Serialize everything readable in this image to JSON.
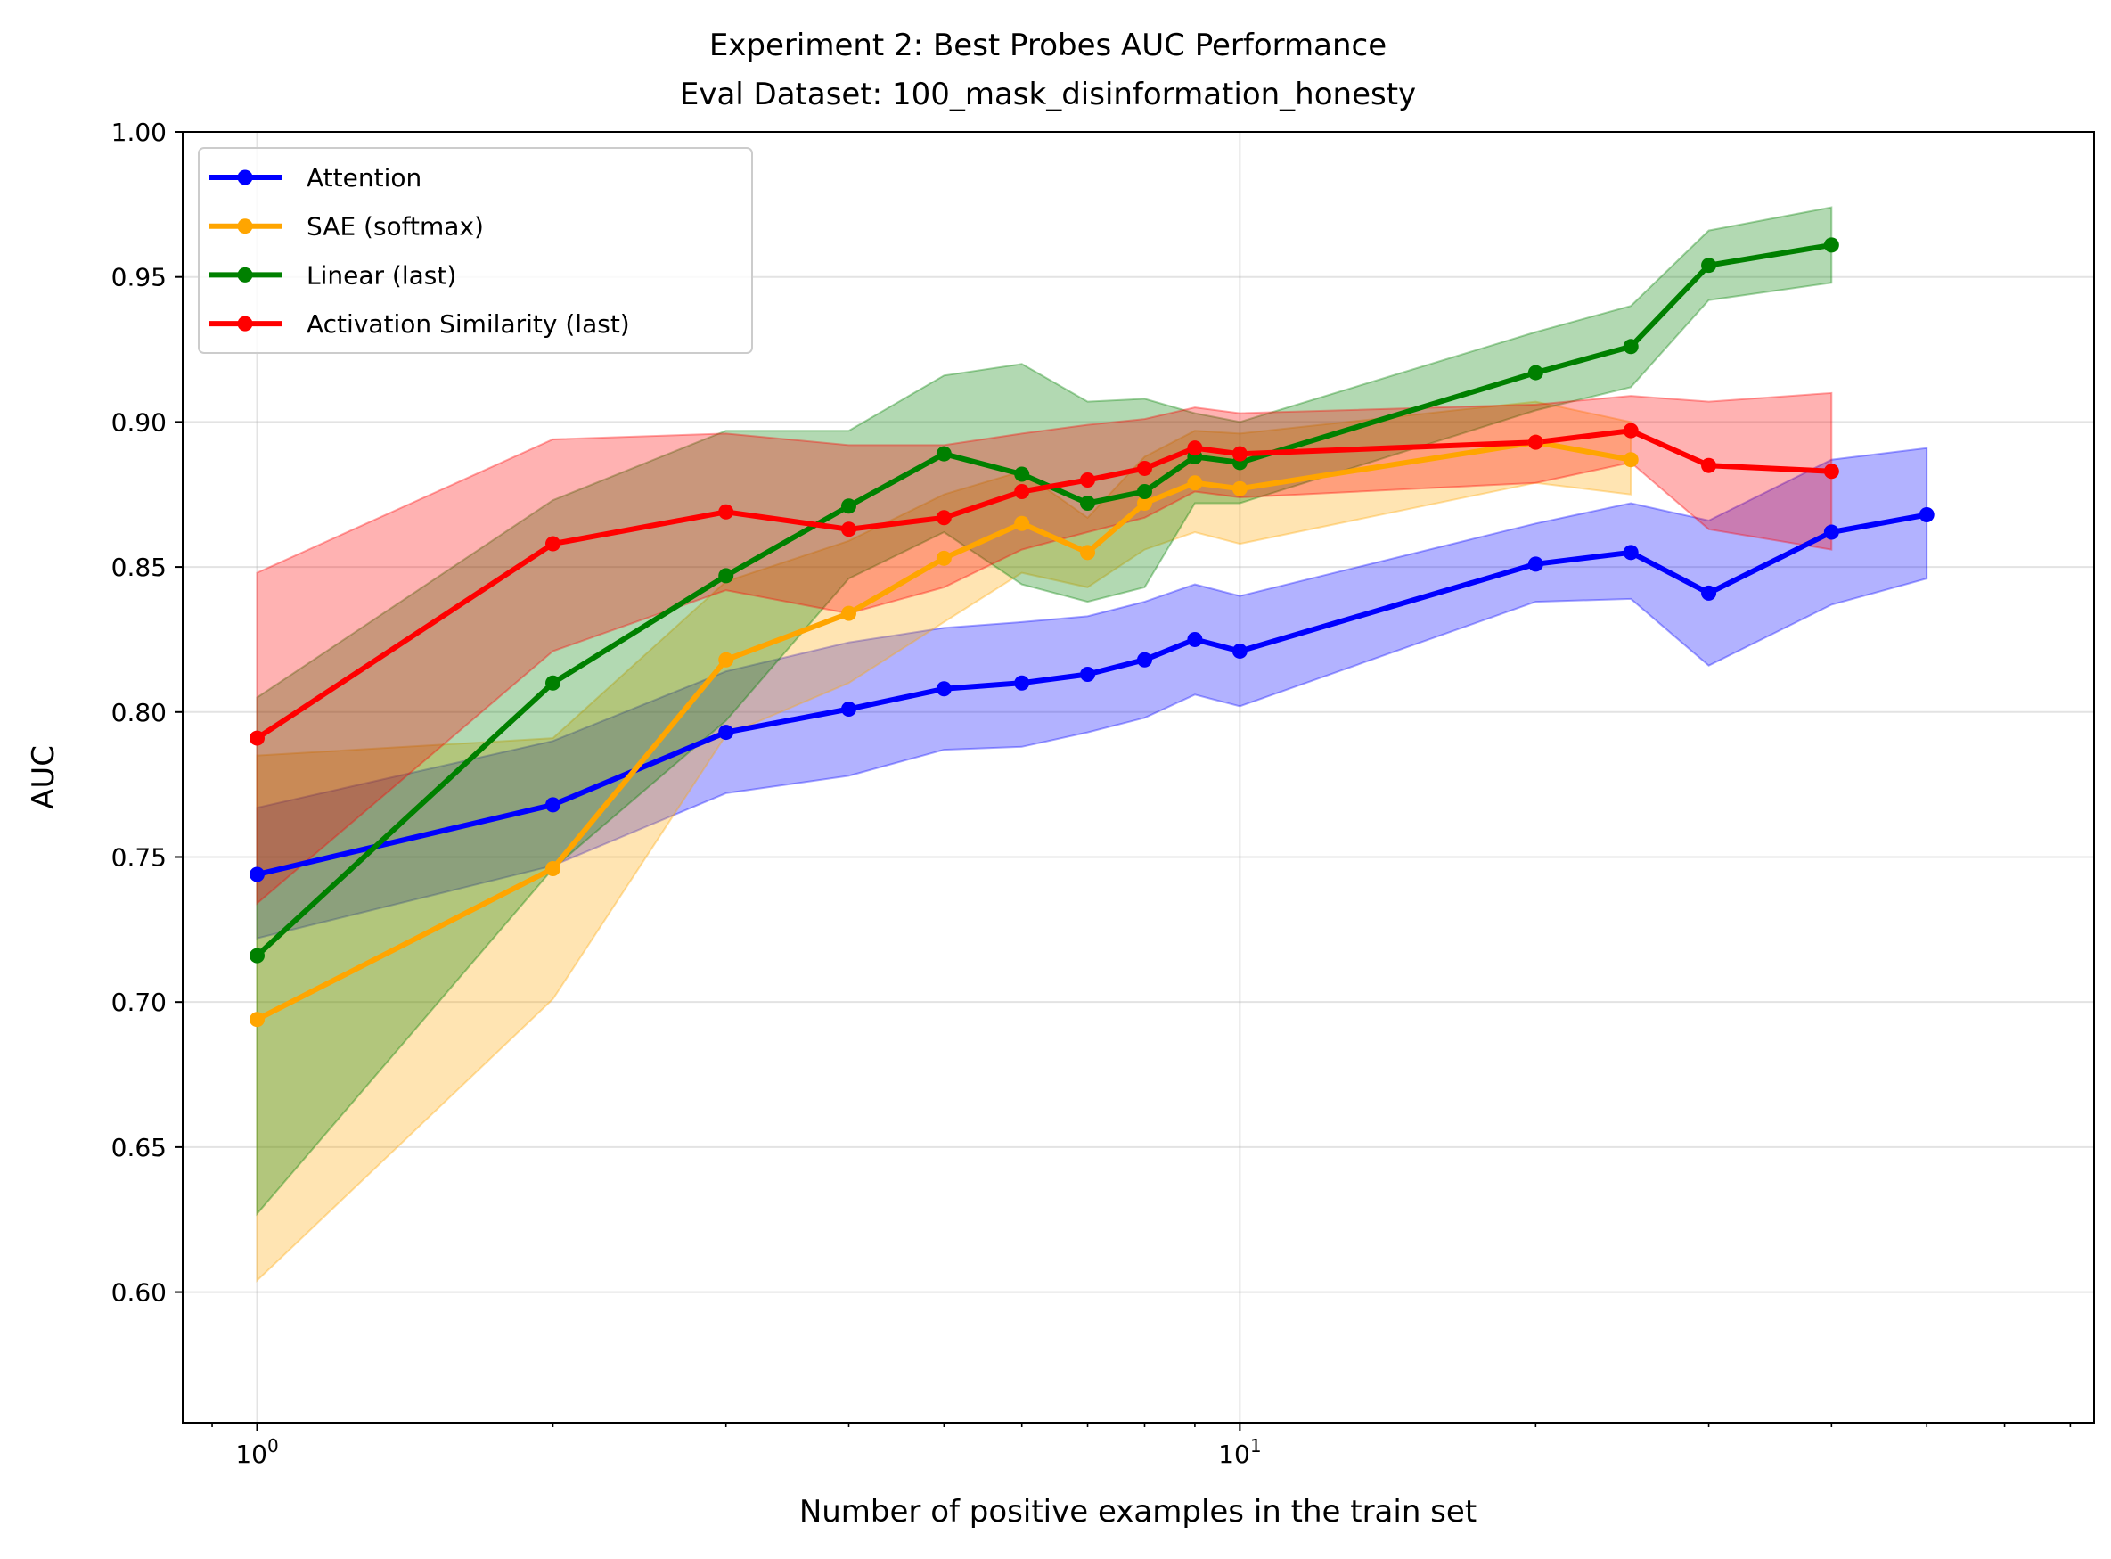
{
  "chart_data": {
    "type": "line",
    "title": "Experiment 2: Best Probes AUC Performance",
    "subtitle": "Eval Dataset: 100_mask_disinformation_honesty",
    "xlabel": "Number of positive examples in the train set",
    "ylabel": "AUC",
    "xscale": "log",
    "xlim": [
      0.84,
      74
    ],
    "ylim": [
      0.555,
      1.0
    ],
    "yticks": [
      0.6,
      0.65,
      0.7,
      0.75,
      0.8,
      0.85,
      0.9,
      0.95,
      1.0
    ],
    "ytick_labels": [
      "0.60",
      "0.65",
      "0.70",
      "0.75",
      "0.80",
      "0.85",
      "0.90",
      "0.95",
      "1.00"
    ],
    "xticks": [
      1,
      10
    ],
    "xtick_labels": [
      {
        "base": "10",
        "exp": "0"
      },
      {
        "base": "10",
        "exp": "1"
      }
    ],
    "grid": true,
    "legend_position": "top-left",
    "series": [
      {
        "name": "Attention",
        "color": "#0000ff",
        "x": [
          1,
          2,
          3,
          4,
          5,
          6,
          7,
          8,
          9,
          10,
          20,
          25,
          30,
          40,
          50
        ],
        "y": [
          0.744,
          0.768,
          0.793,
          0.801,
          0.808,
          0.81,
          0.813,
          0.818,
          0.825,
          0.821,
          0.851,
          0.855,
          0.841,
          0.862,
          0.868
        ],
        "lower": [
          0.722,
          0.747,
          0.772,
          0.778,
          0.787,
          0.788,
          0.793,
          0.798,
          0.806,
          0.802,
          0.838,
          0.839,
          0.816,
          0.837,
          0.846
        ],
        "upper": [
          0.767,
          0.79,
          0.814,
          0.824,
          0.829,
          0.831,
          0.833,
          0.838,
          0.844,
          0.84,
          0.865,
          0.872,
          0.866,
          0.887,
          0.891
        ]
      },
      {
        "name": "SAE (softmax)",
        "color": "#ffa500",
        "x": [
          1,
          2,
          3,
          4,
          5,
          6,
          7,
          8,
          9,
          10,
          20,
          25
        ],
        "y": [
          0.694,
          0.746,
          0.818,
          0.834,
          0.853,
          0.865,
          0.855,
          0.872,
          0.879,
          0.877,
          0.893,
          0.887
        ],
        "lower": [
          0.604,
          0.701,
          0.792,
          0.81,
          0.831,
          0.848,
          0.843,
          0.856,
          0.862,
          0.858,
          0.879,
          0.875
        ],
        "upper": [
          0.785,
          0.791,
          0.845,
          0.859,
          0.875,
          0.883,
          0.867,
          0.888,
          0.897,
          0.896,
          0.907,
          0.9
        ]
      },
      {
        "name": "Linear (last)",
        "color": "#008000",
        "x": [
          1,
          2,
          3,
          4,
          5,
          6,
          7,
          8,
          9,
          10,
          20,
          25,
          30,
          40
        ],
        "y": [
          0.716,
          0.81,
          0.847,
          0.871,
          0.889,
          0.882,
          0.872,
          0.876,
          0.888,
          0.886,
          0.917,
          0.926,
          0.954,
          0.961
        ],
        "lower": [
          0.627,
          0.746,
          0.797,
          0.846,
          0.862,
          0.844,
          0.838,
          0.843,
          0.872,
          0.872,
          0.904,
          0.912,
          0.942,
          0.948
        ],
        "upper": [
          0.805,
          0.873,
          0.897,
          0.897,
          0.916,
          0.92,
          0.907,
          0.908,
          0.903,
          0.9,
          0.931,
          0.94,
          0.966,
          0.974
        ]
      },
      {
        "name": "Activation Similarity (last)",
        "color": "#ff0000",
        "x": [
          1,
          2,
          3,
          4,
          5,
          6,
          7,
          8,
          9,
          10,
          20,
          25,
          30,
          40
        ],
        "y": [
          0.791,
          0.858,
          0.869,
          0.863,
          0.867,
          0.876,
          0.88,
          0.884,
          0.891,
          0.889,
          0.893,
          0.897,
          0.885,
          0.883
        ],
        "lower": [
          0.734,
          0.821,
          0.842,
          0.834,
          0.843,
          0.856,
          0.862,
          0.867,
          0.876,
          0.874,
          0.879,
          0.886,
          0.863,
          0.856
        ],
        "upper": [
          0.848,
          0.894,
          0.896,
          0.892,
          0.892,
          0.896,
          0.899,
          0.901,
          0.905,
          0.903,
          0.906,
          0.909,
          0.907,
          0.91
        ]
      }
    ]
  }
}
